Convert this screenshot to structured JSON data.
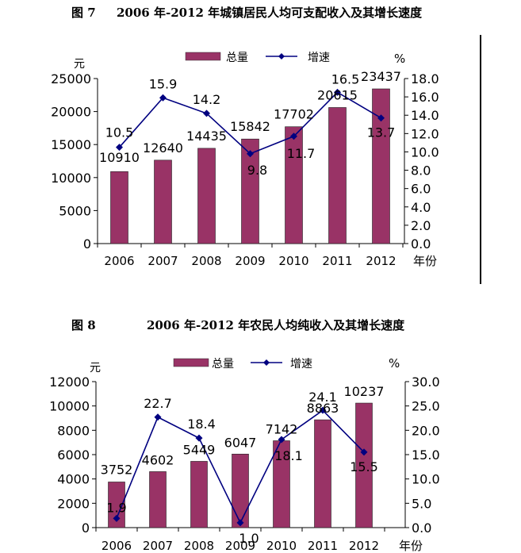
{
  "charts": [
    {
      "fig_label": "图 7",
      "title": "2006 年-2012 年城镇居民人均可支配收入及其增长速度"
    },
    {
      "fig_label": "图 8",
      "title": "2006 年-2012 年农民人均纯收入及其增长速度"
    }
  ],
  "colors": {
    "bar": "#993366",
    "line": "#000080",
    "axis": "#000000",
    "text": "#000000"
  },
  "chart_data": [
    {
      "type": "bar",
      "title": "2006 年-2012 年城镇居民人均可支配收入及其增长速度",
      "categories": [
        "2006",
        "2007",
        "2008",
        "2009",
        "2010",
        "2011",
        "2012"
      ],
      "xlabel": "年份",
      "ylabel": "元",
      "y2label": "%",
      "ylim": [
        0,
        25000
      ],
      "yticks": [
        "0",
        "5000",
        "10000",
        "15000",
        "20000",
        "25000"
      ],
      "y2lim": [
        0,
        18
      ],
      "y2ticks": [
        "0.0",
        "2.0",
        "4.0",
        "6.0",
        "8.0",
        "10.0",
        "12.0",
        "14.0",
        "16.0",
        "18.0"
      ],
      "series": [
        {
          "name": "总量",
          "kind": "bar",
          "values": [
            10910,
            12640,
            14435,
            15842,
            17702,
            20615,
            23437
          ],
          "labels": [
            "10910",
            "12640",
            "14435",
            "15842",
            "17702",
            "20615",
            "23437"
          ]
        },
        {
          "name": "增速",
          "kind": "line",
          "axis": "right",
          "values": [
            10.5,
            15.9,
            14.2,
            9.8,
            11.7,
            16.5,
            13.7
          ],
          "labels": [
            "10.5",
            "15.9",
            "14.2",
            "9.8",
            "11.7",
            "16.5",
            "13.7"
          ]
        }
      ],
      "legend": "top-center",
      "grid": false
    },
    {
      "type": "bar",
      "title": "2006 年-2012 年农民人均纯收入及其增长速度",
      "categories": [
        "2006",
        "2007",
        "2008",
        "2009",
        "2010",
        "2011",
        "2012"
      ],
      "xlabel": "年份",
      "ylabel": "元",
      "y2label": "%",
      "ylim": [
        0,
        12000
      ],
      "yticks": [
        "0",
        "2000",
        "4000",
        "6000",
        "8000",
        "10000",
        "12000"
      ],
      "y2lim": [
        0,
        30
      ],
      "y2ticks": [
        "0.0",
        "5.0",
        "10.0",
        "15.0",
        "20.0",
        "25.0",
        "30.0"
      ],
      "series": [
        {
          "name": "总量",
          "kind": "bar",
          "values": [
            3752,
            4602,
            5449,
            6047,
            7142,
            8863,
            10237
          ],
          "labels": [
            "3752",
            "4602",
            "5449",
            "6047",
            "7142",
            "8863",
            "10237"
          ]
        },
        {
          "name": "增速",
          "kind": "line",
          "axis": "right",
          "values": [
            1.9,
            22.7,
            18.4,
            1.0,
            18.1,
            24.1,
            15.5
          ],
          "labels": [
            "1.9",
            "22.7",
            "18.4",
            "1.0",
            "18.1",
            "24.1",
            "15.5"
          ]
        }
      ],
      "legend": "top-center",
      "grid": false
    }
  ]
}
